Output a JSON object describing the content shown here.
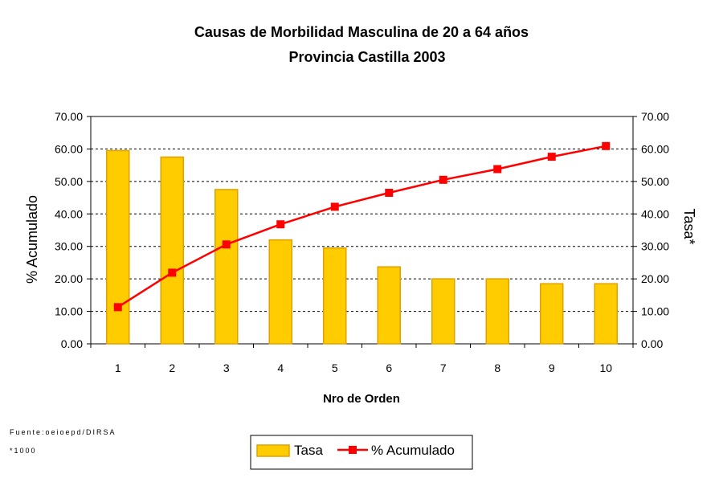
{
  "chart_data": {
    "type": "bar",
    "title": "Causas de Morbilidad Masculina de 20 a 64 años",
    "subtitle": "Provincia Castilla 2003",
    "xlabel": "Nro de Orden",
    "ylabel_left": "% Acumulado",
    "ylabel_right": "Tasa*",
    "categories": [
      "1",
      "2",
      "3",
      "4",
      "5",
      "6",
      "7",
      "8",
      "9",
      "10"
    ],
    "ylim": [
      0,
      70
    ],
    "yticks": [
      "0.00",
      "10.00",
      "20.00",
      "30.00",
      "40.00",
      "50.00",
      "60.00",
      "70.00"
    ],
    "grid": true,
    "legend_position": "bottom-center",
    "series": [
      {
        "name": "Tasa",
        "type": "bar",
        "color": "#FFCC00",
        "border": "#E0A000",
        "values": [
          59.5,
          57.5,
          47.5,
          32.0,
          29.5,
          23.7,
          20.0,
          20.0,
          18.5,
          18.5
        ]
      },
      {
        "name": "% Acumulado",
        "type": "line",
        "color": "#FF0000",
        "marker": "square",
        "values": [
          11.3,
          21.9,
          30.6,
          36.8,
          42.2,
          46.5,
          50.5,
          53.8,
          57.6,
          60.9
        ]
      }
    ]
  },
  "footnotes": {
    "source": "Fuente:oeioepd/DIRSA",
    "note": "*1000"
  }
}
